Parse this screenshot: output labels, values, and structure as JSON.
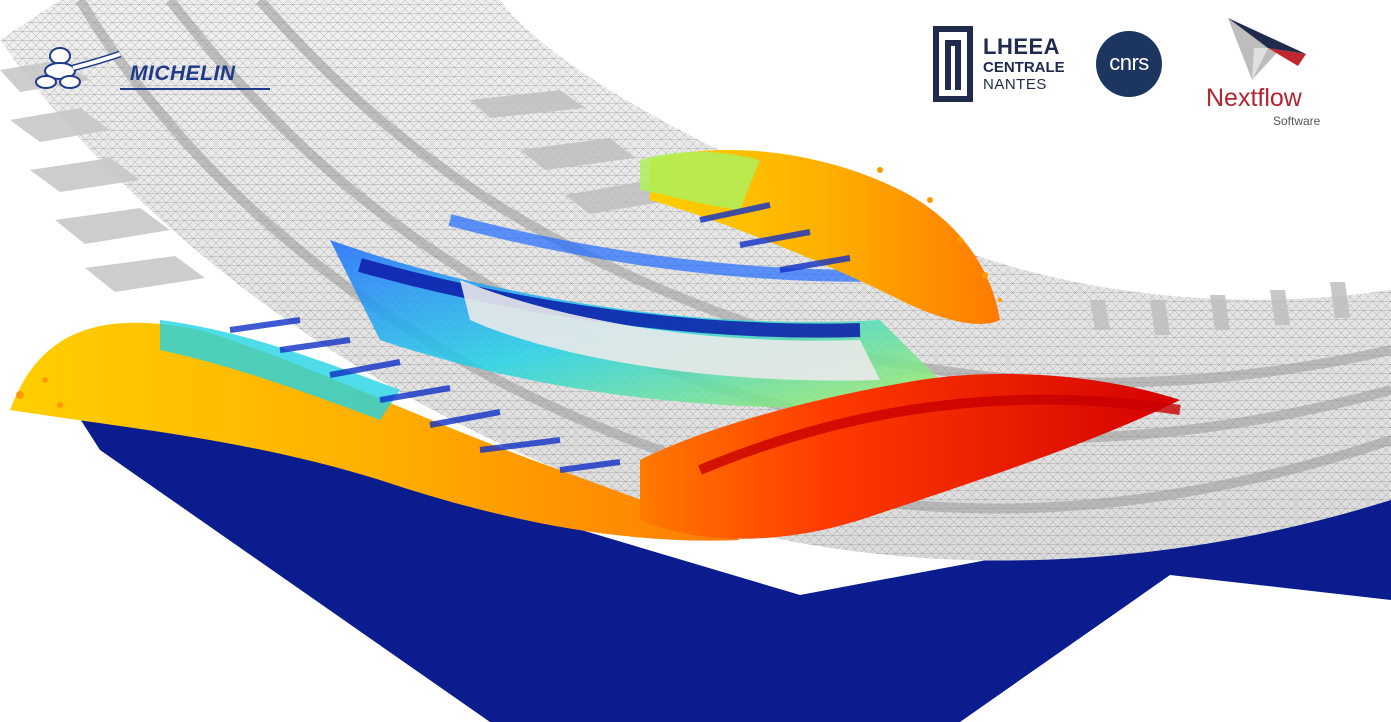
{
  "logos": {
    "michelin": {
      "name": "MICHELIN",
      "color": "#1e3a8a"
    },
    "lheea": {
      "line1": "LHEEA",
      "line2": "CENTRALE",
      "line3": "NANTES",
      "color": "#1f2a4d"
    },
    "cnrs": {
      "text": "cnrs",
      "color": "#1d3660"
    },
    "nextflow": {
      "name": "Nextflow",
      "subtitle": "Software",
      "color": "#b3242e"
    }
  },
  "scene": {
    "road_color": "#0b1d8e",
    "tire_mesh_color": "#8a8a8a",
    "velocity_colormap": [
      "#0a1aa8",
      "#1e6bff",
      "#22d3e6",
      "#aef05a",
      "#ffe600",
      "#ff9a00",
      "#ff3a00",
      "#d40000"
    ]
  }
}
